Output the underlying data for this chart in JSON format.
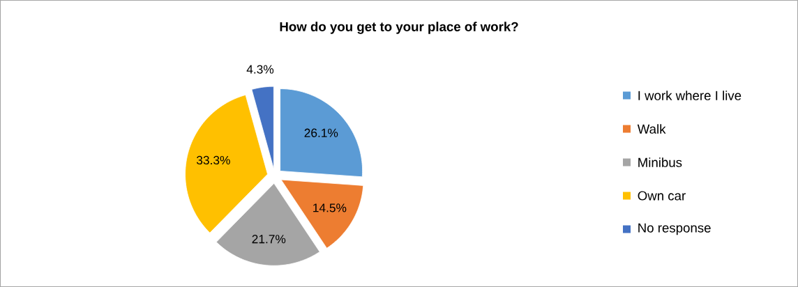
{
  "chart_data": {
    "type": "pie",
    "title": "How do you get to your place of work?",
    "categories": [
      "I work where I live",
      "Walk",
      "Minibus",
      "Own car",
      "No response"
    ],
    "values": [
      26.1,
      14.5,
      21.7,
      33.3,
      4.3
    ],
    "value_labels": [
      "26.1%",
      "14.5%",
      "21.7%",
      "33.3%",
      "4.3%"
    ],
    "colors": [
      "#5b9bd5",
      "#ed7d31",
      "#a5a5a5",
      "#ffc000",
      "#4472c4"
    ],
    "legend": "right"
  }
}
